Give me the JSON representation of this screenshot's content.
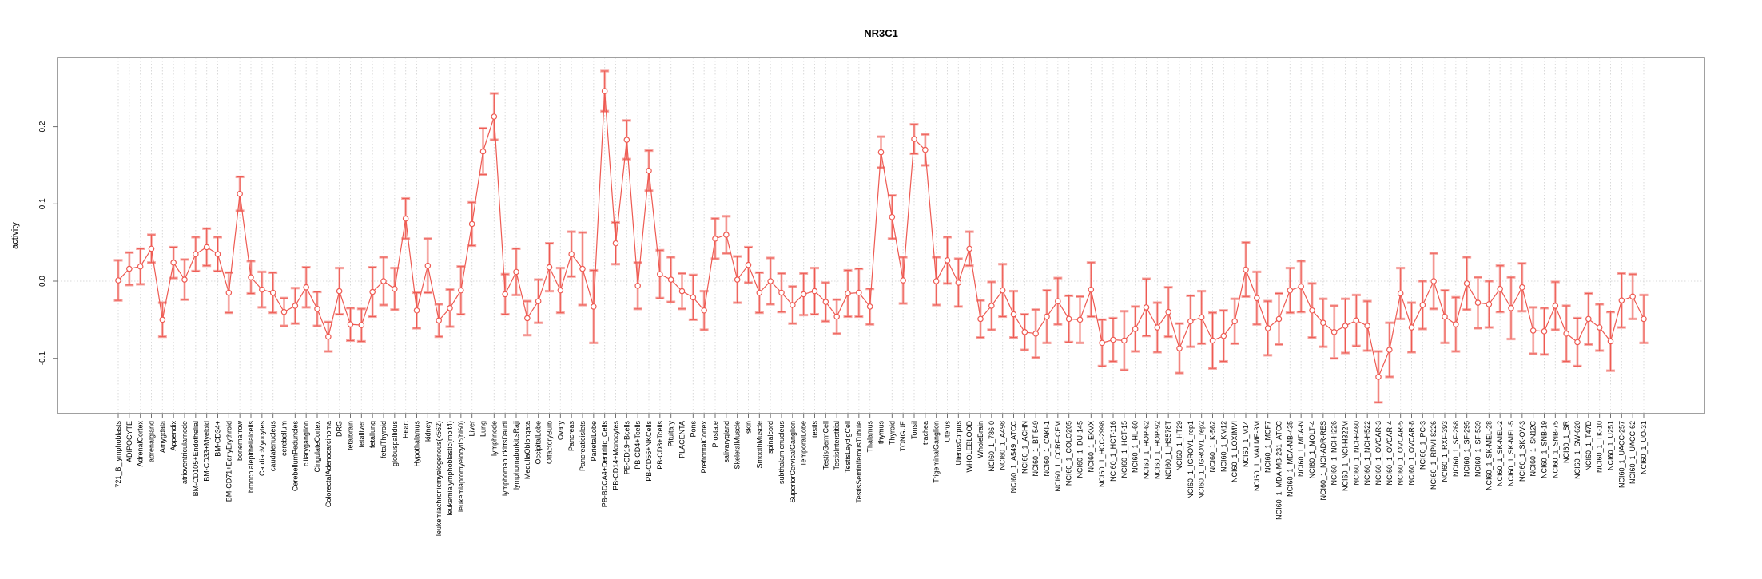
{
  "chart_data": {
    "type": "line",
    "title": "NR3C1",
    "ylabel": "activity",
    "xlabel": "",
    "grid": "vertical dotted line per category; horizontal dotted line at y=0",
    "legend": "none",
    "marker": "open-circle",
    "error_bars": true,
    "ylim": [
      -0.17,
      0.29
    ],
    "yticks": {
      "values": [
        -0.1,
        0.0,
        0.1,
        0.2
      ],
      "labels": [
        "-0.1",
        "0.0",
        "0.1",
        "0.2"
      ]
    },
    "colors": {
      "series": "#ee5a52",
      "error_cap": "#f6a7a3",
      "grid": "#d9d9d9",
      "border": "#888888",
      "tick": "#707070"
    },
    "categories": [
      "721_B_lymphoblasts",
      "ADIPOCYTE",
      "AdrenalCortex",
      "adrenalgland",
      "Amygdala",
      "Appendix",
      "atrioventricularnode",
      "BM-CD105+Endothelial",
      "BM-CD33+Myeloid",
      "BM-CD34+",
      "BM-CD71+EarlyErythroid",
      "bonemarrow",
      "bronchialepithelialcells",
      "CardiacMyocytes",
      "caudatenucleus",
      "cerebellum",
      "CerebellumPeduncles",
      "ciliaryganglion",
      "CingulateCortex",
      "ColorectalAdenocarcinoma",
      "DRG",
      "fetalbrain",
      "fetalliver",
      "fetallung",
      "fetalThyroid",
      "globuspallidus",
      "Heart",
      "Hypothalamus",
      "kidney",
      "leukemiachronicmyelogenous(k562)",
      "leukemialymphoblastic(molt4)",
      "leukemiapromyelocytic(hl60)",
      "Liver",
      "Lung",
      "lymphnode",
      "lymphomaburkittsDaudi",
      "lymphomaburkittsRaji",
      "MedullaOblongata",
      "OccipitalLobe",
      "OlfactoryBulb",
      "Ovary",
      "Pancreas",
      "Pancreaticislets",
      "ParietalLobe",
      "PB-BDCA4+Dentritic_Cells",
      "PB-CD14+Monocytes",
      "PB-CD19+Bcells",
      "PB-CD4+Tcells",
      "PB-CD56+NKCells",
      "PB-CD8+Tcells",
      "Pituitary",
      "PLACENTA",
      "Pons",
      "PrefrontalCortex",
      "Prostate",
      "salivarygland",
      "SkeletalMuscle",
      "skin",
      "SmoothMuscle",
      "spinalcord",
      "subthalamicnucleus",
      "SuperiorCervicalGanglion",
      "TemporalLobe",
      "testis",
      "TestisGermCell",
      "TestisInterstitial",
      "TestisLeydigCell",
      "TestisSeminiferousTubule",
      "Thalamus",
      "thymus",
      "Thyroid",
      "TONGUE",
      "Tonsil",
      "trachea",
      "TrigeminalGanglion",
      "Uterus",
      "UterusCorpus",
      "WHOLEBLOOD",
      "WholeBrain",
      "NCI60_1_786-0",
      "NCI60_1_A498",
      "NCI60_1_A549_ATCC",
      "NCI60_1_ACHN",
      "NCI60_1_BT-549",
      "NCI60_1_CAKI-1",
      "NCI60_1_CCRF-CEM",
      "NCI60_1_COLO205",
      "NCI60_1_DU-145",
      "NCI60_1_EKVX",
      "NCI60_1_HCC-2998",
      "NCI60_1_HCT-116",
      "NCI60_1_HCT-15",
      "NCI60_1_HL-60",
      "NCI60_1_HOP-62",
      "NCI60_1_HOP-92",
      "NCI60_1_HS578T",
      "NCI60_1_HT29",
      "NCI60_1_IGROV1_rep1",
      "NCI60_1_IGROV1_rep2",
      "NCI60_1_K-562",
      "NCI60_1_KM12",
      "NCI60_1_LOXIMVI",
      "NCI60_1_M14",
      "NCI60_1_MALME-3M",
      "NCI60_1_MCF7",
      "NCI60_1_MDA-MB-231_ATCC",
      "NCI60_1_MDA-MB-435",
      "NCI60_1_MDA-N",
      "NCI60_1_MOLT-4",
      "NCI60_1_NCI-ADR-RES",
      "NCI60_1_NCI-H226",
      "NCI60_1_NCI-H322M",
      "NCI60_1_NCI-H460",
      "NCI60_1_NCI-H522",
      "NCI60_1_OVCAR-3",
      "NCI60_1_OVCAR-4",
      "NCI60_1_OVCAR-5",
      "NCI60_1_OVCAR-8",
      "NCI60_1_PC-3",
      "NCI60_1_RPMI-8226",
      "NCI60_1_RXF-393",
      "NCI60_1_SF-268",
      "NCI60_1_SF-295",
      "NCI60_1_SF-539",
      "NCI60_1_SK-MEL-28",
      "NCI60_1_SK-MEL-2",
      "NCI60_1_SK-MEL-5",
      "NCI60_1_SK-OV-3",
      "NCI60_1_SN12C",
      "NCI60_1_SNB-19",
      "NCI60_1_SNB-75",
      "NCI60_1_SR",
      "NCI60_1_SW-620",
      "NCI60_1_T47D",
      "NCI60_1_TK-10",
      "NCI60_1_U251",
      "NCI60_1_UACC-257",
      "NCI60_1_UACC-62",
      "NCI60_1_UO-31"
    ],
    "series": [
      {
        "name": "activity",
        "values": [
          0.001,
          0.016,
          0.019,
          0.042,
          -0.05,
          0.024,
          0.002,
          0.035,
          0.044,
          0.035,
          -0.015,
          0.113,
          0.005,
          -0.011,
          -0.015,
          -0.04,
          -0.032,
          -0.008,
          -0.036,
          -0.072,
          -0.013,
          -0.056,
          -0.057,
          -0.014,
          0.0,
          -0.01,
          0.081,
          -0.038,
          0.02,
          -0.051,
          -0.035,
          -0.012,
          0.074,
          0.168,
          0.213,
          -0.017,
          0.012,
          -0.048,
          -0.026,
          0.018,
          -0.012,
          0.035,
          0.016,
          -0.033,
          0.246,
          0.049,
          0.183,
          -0.006,
          0.143,
          0.009,
          0.002,
          -0.013,
          -0.021,
          -0.038,
          0.055,
          0.06,
          0.002,
          0.021,
          -0.015,
          0.0,
          -0.015,
          -0.031,
          -0.017,
          -0.013,
          -0.027,
          -0.046,
          -0.016,
          -0.015,
          -0.033,
          0.167,
          0.083,
          0.001,
          0.184,
          0.17,
          0.0,
          0.027,
          -0.002,
          0.042,
          -0.049,
          -0.032,
          -0.012,
          -0.043,
          -0.066,
          -0.068,
          -0.046,
          -0.026,
          -0.049,
          -0.05,
          -0.011,
          -0.08,
          -0.076,
          -0.077,
          -0.062,
          -0.034,
          -0.06,
          -0.04,
          -0.087,
          -0.052,
          -0.047,
          -0.077,
          -0.071,
          -0.052,
          0.015,
          -0.022,
          -0.061,
          -0.049,
          -0.012,
          -0.007,
          -0.038,
          -0.054,
          -0.066,
          -0.058,
          -0.051,
          -0.058,
          -0.124,
          -0.089,
          -0.016,
          -0.06,
          -0.031,
          0.0,
          -0.046,
          -0.056,
          -0.003,
          -0.028,
          -0.03,
          -0.01,
          -0.035,
          -0.008,
          -0.064,
          -0.065,
          -0.032,
          -0.068,
          -0.079,
          -0.049,
          -0.06,
          -0.078,
          -0.025,
          -0.02,
          -0.049
        ],
        "errors": [
          0.026,
          0.021,
          0.023,
          0.018,
          0.022,
          0.02,
          0.026,
          0.022,
          0.024,
          0.022,
          0.026,
          0.022,
          0.021,
          0.023,
          0.026,
          0.018,
          0.023,
          0.026,
          0.022,
          0.019,
          0.03,
          0.021,
          0.021,
          0.032,
          0.031,
          0.027,
          0.026,
          0.023,
          0.035,
          0.021,
          0.024,
          0.031,
          0.028,
          0.03,
          0.03,
          0.026,
          0.03,
          0.022,
          0.028,
          0.031,
          0.029,
          0.029,
          0.047,
          0.047,
          0.026,
          0.027,
          0.025,
          0.03,
          0.026,
          0.031,
          0.029,
          0.023,
          0.029,
          0.025,
          0.026,
          0.024,
          0.03,
          0.023,
          0.026,
          0.03,
          0.025,
          0.024,
          0.027,
          0.03,
          0.025,
          0.022,
          0.03,
          0.031,
          0.023,
          0.02,
          0.028,
          0.03,
          0.019,
          0.02,
          0.031,
          0.03,
          0.031,
          0.022,
          0.024,
          0.031,
          0.034,
          0.03,
          0.023,
          0.031,
          0.034,
          0.03,
          0.03,
          0.03,
          0.035,
          0.03,
          0.028,
          0.038,
          0.029,
          0.037,
          0.032,
          0.032,
          0.032,
          0.033,
          0.034,
          0.036,
          0.033,
          0.029,
          0.035,
          0.034,
          0.035,
          0.033,
          0.029,
          0.033,
          0.035,
          0.031,
          0.034,
          0.035,
          0.033,
          0.032,
          0.033,
          0.035,
          0.033,
          0.032,
          0.031,
          0.036,
          0.034,
          0.035,
          0.034,
          0.033,
          0.03,
          0.03,
          0.04,
          0.031,
          0.03,
          0.03,
          0.031,
          0.036,
          0.031,
          0.033,
          0.03,
          0.038,
          0.035,
          0.029,
          0.031
        ]
      }
    ]
  }
}
